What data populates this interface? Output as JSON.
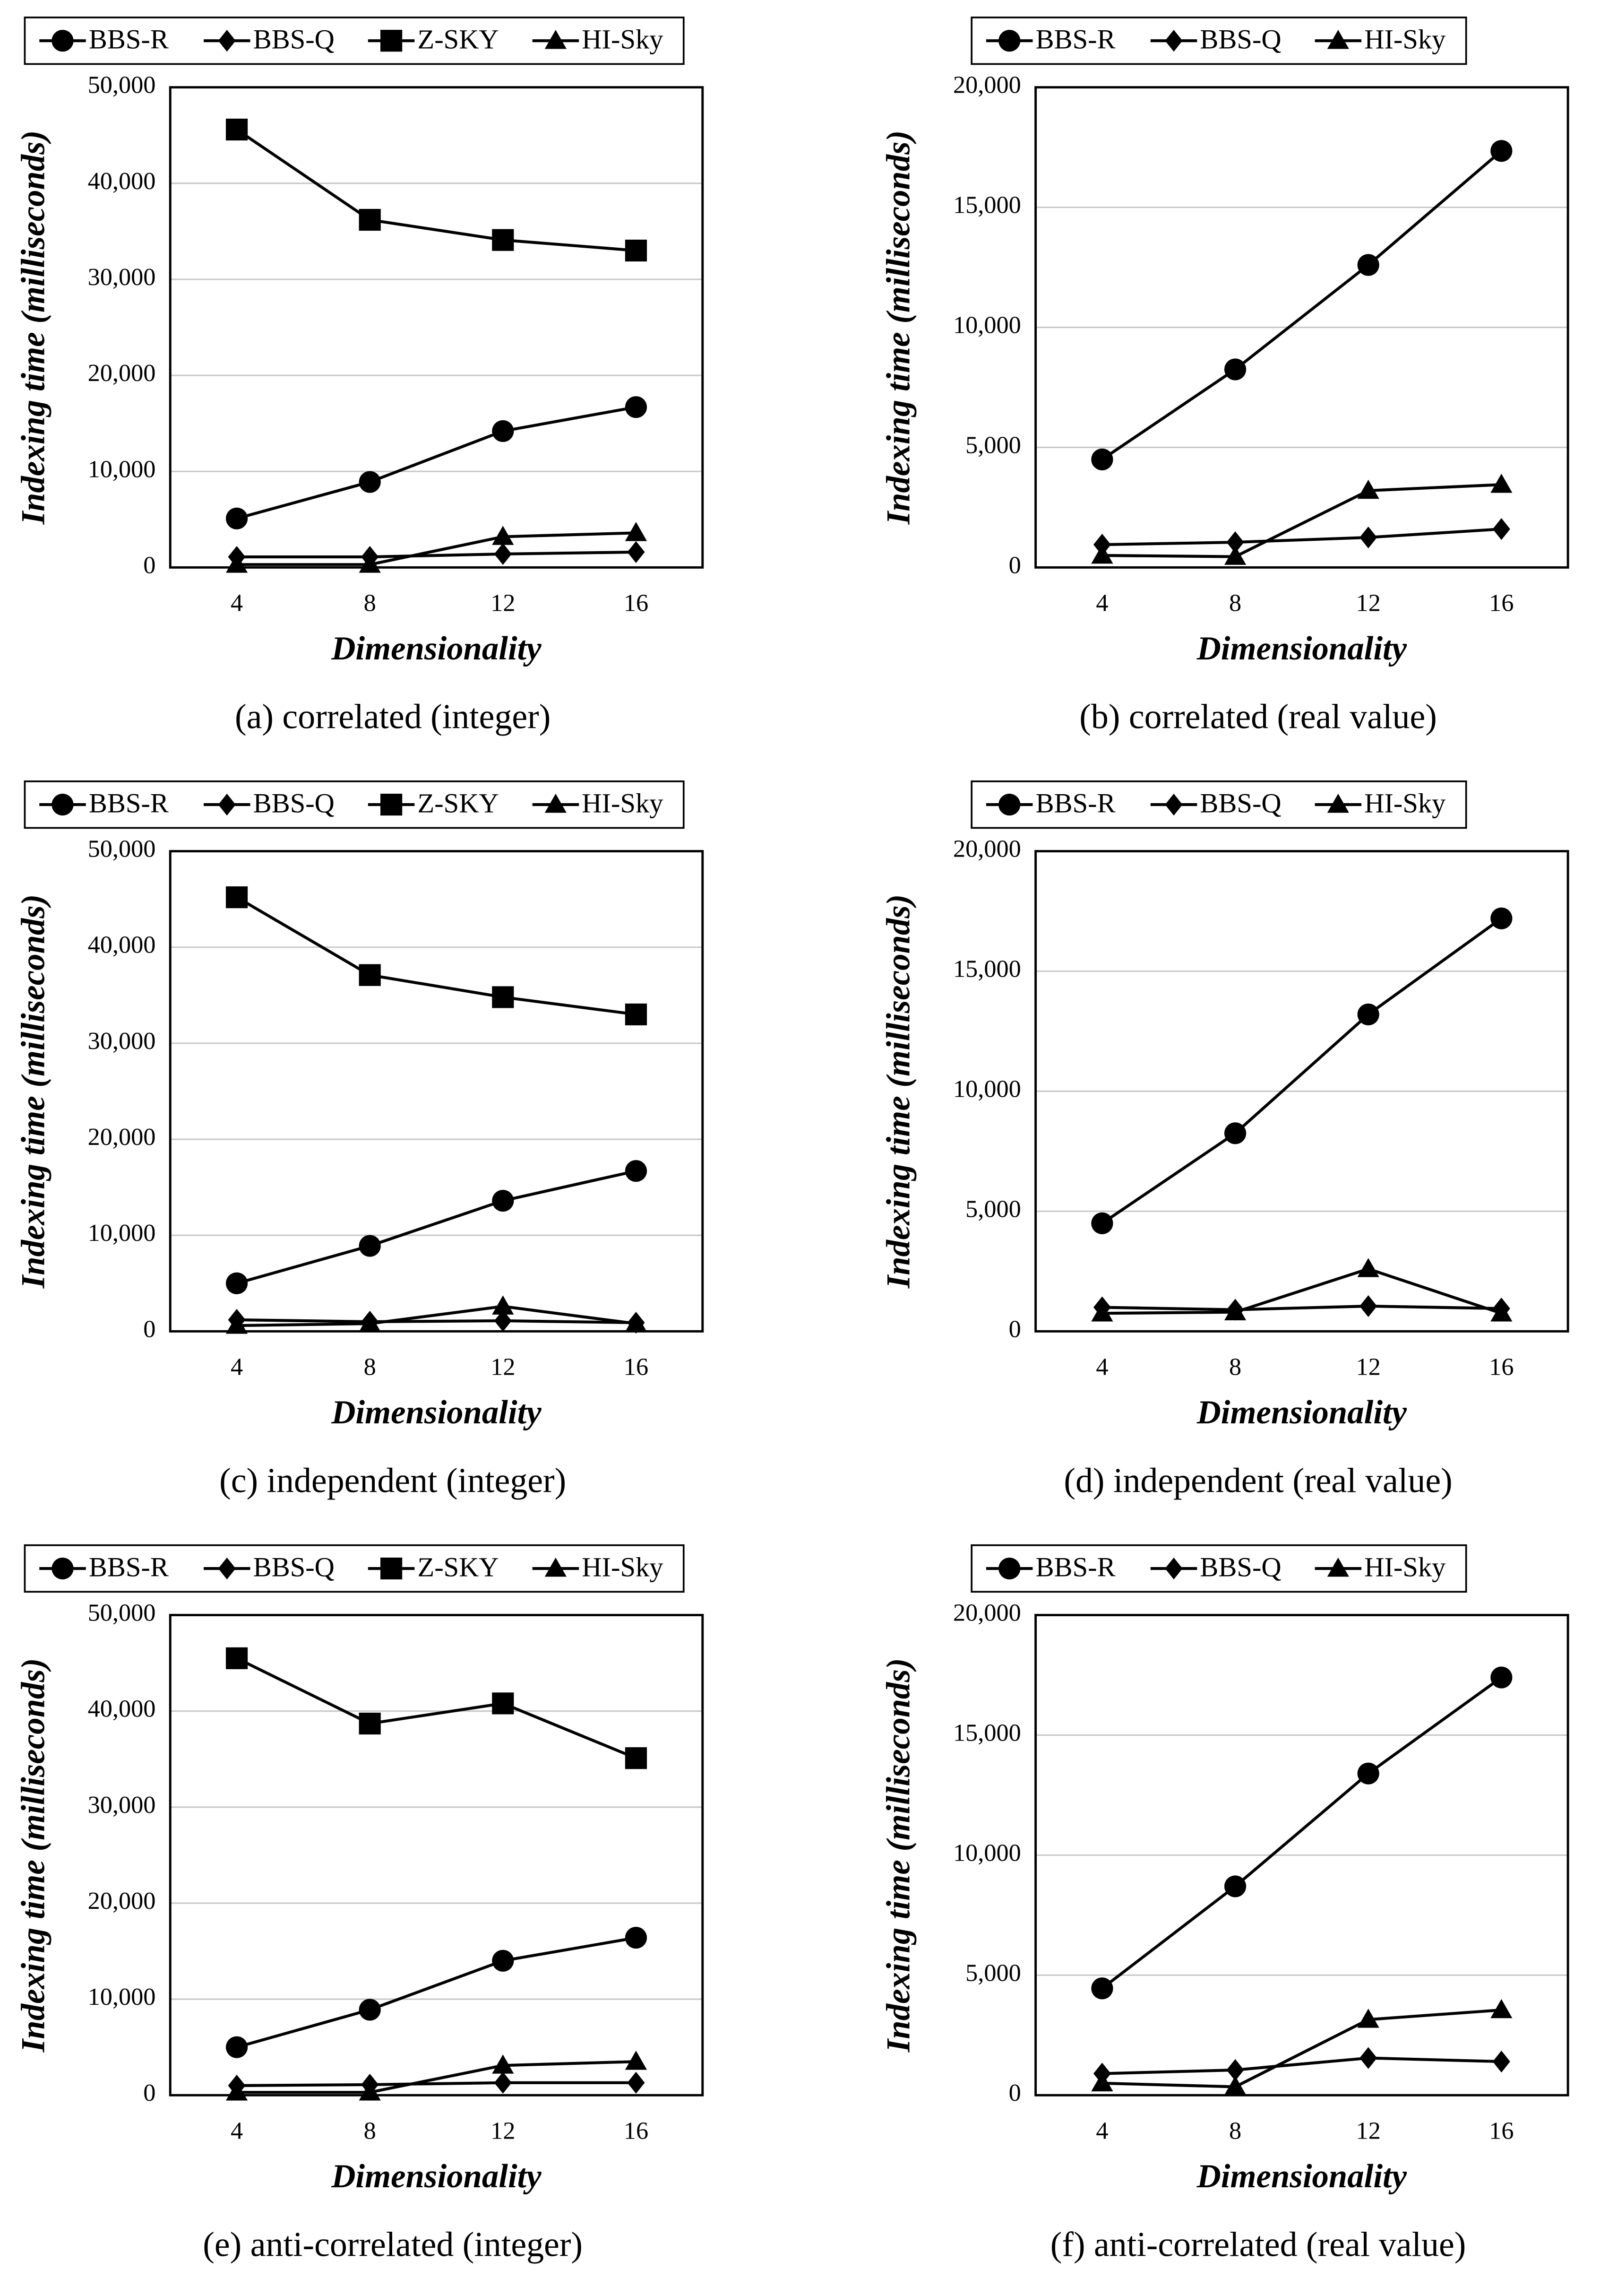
{
  "chart_data": [
    {
      "type": "line",
      "caption": "(a) correlated (integer)",
      "x_label": "Dimensionality",
      "y_label": "Indexing time (milliseconds)",
      "categories": [
        "4",
        "8",
        "12",
        "16"
      ],
      "ylim": [
        0,
        50000
      ],
      "yticks": [
        0,
        {
          "value": 10000,
          "label": "10,000"
        },
        {
          "value": 20000,
          "label": "20,000"
        },
        {
          "value": 30000,
          "label": "30,000"
        },
        {
          "value": 40000,
          "label": "40,000"
        },
        {
          "value": 50000,
          "label": "50,000"
        }
      ],
      "grid": true,
      "series": [
        {
          "name": "BBS-R",
          "color": "#000000",
          "marker": "circle",
          "values": [
            5100,
            8900,
            14200,
            16700
          ]
        },
        {
          "name": "BBS-Q",
          "color": "#000000",
          "marker": "diamond",
          "values": [
            1100,
            1100,
            1400,
            1600
          ]
        },
        {
          "name": "Z-SKY",
          "color": "#000000",
          "marker": "square",
          "values": [
            45600,
            36200,
            34100,
            33000
          ]
        },
        {
          "name": "HI-Sky",
          "color": "#000000",
          "marker": "triangle",
          "values": [
            300,
            300,
            3200,
            3600
          ]
        }
      ]
    },
    {
      "type": "line",
      "caption": "(b) correlated (real value)",
      "x_label": "Dimensionality",
      "y_label": "Indexing time (milliseconds)",
      "categories": [
        "4",
        "8",
        "12",
        "16"
      ],
      "ylim": [
        0,
        20000
      ],
      "yticks": [
        0,
        {
          "value": 5000,
          "label": "5,000"
        },
        {
          "value": 10000,
          "label": "10,000"
        },
        {
          "value": 15000,
          "label": "15,000"
        },
        {
          "value": 20000,
          "label": "20,000"
        }
      ],
      "grid": true,
      "series": [
        {
          "name": "BBS-R",
          "color": "#000000",
          "marker": "circle",
          "values": [
            4500,
            8250,
            12600,
            17350
          ]
        },
        {
          "name": "BBS-Q",
          "color": "#000000",
          "marker": "diamond",
          "values": [
            950,
            1050,
            1250,
            1600
          ]
        },
        {
          "name": "HI-Sky",
          "color": "#000000",
          "marker": "triangle",
          "values": [
            500,
            450,
            3200,
            3450
          ]
        }
      ]
    },
    {
      "type": "line",
      "caption": "(c) independent (integer)",
      "x_label": "Dimensionality",
      "y_label": "Indexing time (milliseconds)",
      "categories": [
        "4",
        "8",
        "12",
        "16"
      ],
      "ylim": [
        0,
        50000
      ],
      "yticks": [
        0,
        {
          "value": 10000,
          "label": "10,000"
        },
        {
          "value": 20000,
          "label": "20,000"
        },
        {
          "value": 30000,
          "label": "30,000"
        },
        {
          "value": 40000,
          "label": "40,000"
        },
        {
          "value": 50000,
          "label": "50,000"
        }
      ],
      "grid": true,
      "series": [
        {
          "name": "BBS-R",
          "color": "#000000",
          "marker": "circle",
          "values": [
            5000,
            8900,
            13600,
            16700
          ]
        },
        {
          "name": "BBS-Q",
          "color": "#000000",
          "marker": "diamond",
          "values": [
            1200,
            1000,
            1100,
            900
          ]
        },
        {
          "name": "Z-SKY",
          "color": "#000000",
          "marker": "square",
          "values": [
            45200,
            37100,
            34800,
            33000
          ]
        },
        {
          "name": "HI-Sky",
          "color": "#000000",
          "marker": "triangle",
          "values": [
            600,
            800,
            2600,
            800
          ]
        }
      ]
    },
    {
      "type": "line",
      "caption": "(d) independent (real value)",
      "x_label": "Dimensionality",
      "y_label": "Indexing time (milliseconds)",
      "categories": [
        "4",
        "8",
        "12",
        "16"
      ],
      "ylim": [
        0,
        20000
      ],
      "yticks": [
        0,
        {
          "value": 5000,
          "label": "5,000"
        },
        {
          "value": 10000,
          "label": "10,000"
        },
        {
          "value": 15000,
          "label": "15,000"
        },
        {
          "value": 20000,
          "label": "20,000"
        }
      ],
      "grid": true,
      "series": [
        {
          "name": "BBS-R",
          "color": "#000000",
          "marker": "circle",
          "values": [
            4500,
            8250,
            13200,
            17200
          ]
        },
        {
          "name": "BBS-Q",
          "color": "#000000",
          "marker": "diamond",
          "values": [
            1000,
            900,
            1050,
            950
          ]
        },
        {
          "name": "HI-Sky",
          "color": "#000000",
          "marker": "triangle",
          "values": [
            750,
            800,
            2600,
            750
          ]
        }
      ]
    },
    {
      "type": "line",
      "caption": "(e) anti-correlated (integer)",
      "x_label": "Dimensionality",
      "y_label": "Indexing time (milliseconds)",
      "categories": [
        "4",
        "8",
        "12",
        "16"
      ],
      "ylim": [
        0,
        50000
      ],
      "yticks": [
        0,
        {
          "value": 10000,
          "label": "10,000"
        },
        {
          "value": 20000,
          "label": "20,000"
        },
        {
          "value": 30000,
          "label": "30,000"
        },
        {
          "value": 40000,
          "label": "40,000"
        },
        {
          "value": 50000,
          "label": "50,000"
        }
      ],
      "grid": true,
      "series": [
        {
          "name": "BBS-R",
          "color": "#000000",
          "marker": "circle",
          "values": [
            5000,
            8900,
            14000,
            16400
          ]
        },
        {
          "name": "BBS-Q",
          "color": "#000000",
          "marker": "diamond",
          "values": [
            1000,
            1100,
            1300,
            1300
          ]
        },
        {
          "name": "Z-SKY",
          "color": "#000000",
          "marker": "square",
          "values": [
            45500,
            38700,
            40800,
            35100
          ]
        },
        {
          "name": "HI-Sky",
          "color": "#000000",
          "marker": "triangle",
          "values": [
            300,
            300,
            3100,
            3500
          ]
        }
      ]
    },
    {
      "type": "line",
      "caption": "(f) anti-correlated (real value)",
      "x_label": "Dimensionality",
      "y_label": "Indexing time (milliseconds)",
      "categories": [
        "4",
        "8",
        "12",
        "16"
      ],
      "ylim": [
        0,
        20000
      ],
      "yticks": [
        0,
        {
          "value": 5000,
          "label": "5,000"
        },
        {
          "value": 10000,
          "label": "10,000"
        },
        {
          "value": 15000,
          "label": "15,000"
        },
        {
          "value": 20000,
          "label": "20,000"
        }
      ],
      "grid": true,
      "series": [
        {
          "name": "BBS-R",
          "color": "#000000",
          "marker": "circle",
          "values": [
            4450,
            8700,
            13400,
            17400
          ]
        },
        {
          "name": "BBS-Q",
          "color": "#000000",
          "marker": "diamond",
          "values": [
            900,
            1050,
            1550,
            1400
          ]
        },
        {
          "name": "HI-Sky",
          "color": "#000000",
          "marker": "triangle",
          "values": [
            500,
            350,
            3150,
            3550
          ]
        }
      ]
    }
  ]
}
